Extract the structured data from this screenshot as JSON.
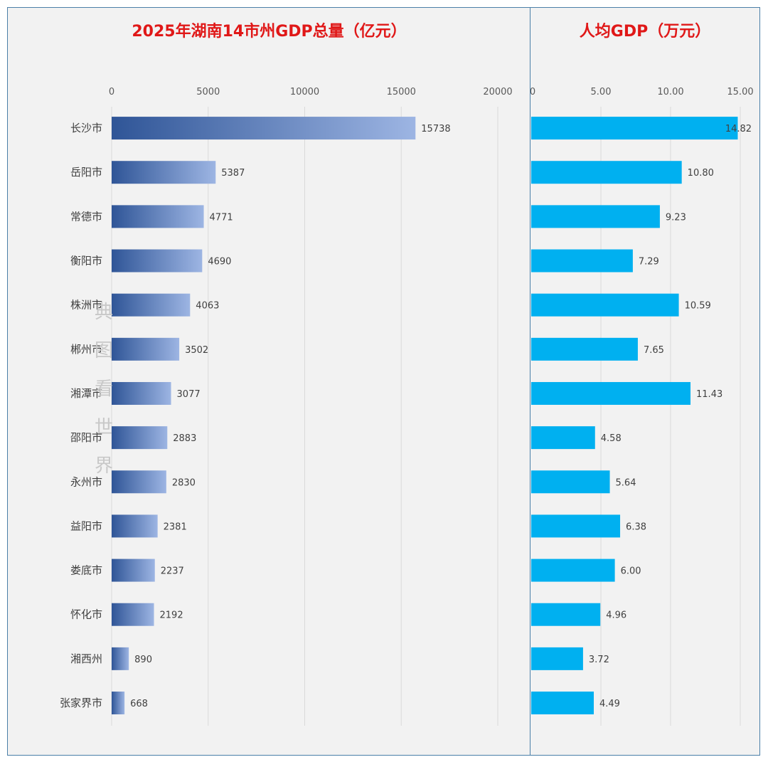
{
  "chart_data": [
    {
      "type": "bar",
      "orientation": "horizontal",
      "title": "2025年湖南14市州GDP总量（亿元）",
      "categories": [
        "长沙市",
        "岳阳市",
        "常德市",
        "衡阳市",
        "株洲市",
        "郴州市",
        "湘潭市",
        "邵阳市",
        "永州市",
        "益阳市",
        "娄底市",
        "怀化市",
        "湘西州",
        "张家界市"
      ],
      "values": [
        15738,
        5387,
        4771,
        4690,
        4063,
        3502,
        3077,
        2883,
        2830,
        2381,
        2237,
        2192,
        890,
        668
      ],
      "value_labels": [
        "15738",
        "5387",
        "4771",
        "4690",
        "4063",
        "3502",
        "3077",
        "2883",
        "2830",
        "2381",
        "2237",
        "2192",
        "890",
        "668"
      ],
      "xlim": [
        0,
        20000
      ],
      "ticks": [
        0,
        5000,
        10000,
        15000,
        20000
      ],
      "tick_labels": [
        "0",
        "5000",
        "10000",
        "15000",
        "20000"
      ],
      "axis_position": "top",
      "grid": true,
      "bar_color": "#2f5597",
      "bar_color_light": "#9db5e3"
    },
    {
      "type": "bar",
      "orientation": "horizontal",
      "title": "人均GDP（万元）",
      "categories": [
        "长沙市",
        "岳阳市",
        "常德市",
        "衡阳市",
        "株洲市",
        "郴州市",
        "湘潭市",
        "邵阳市",
        "永州市",
        "益阳市",
        "娄底市",
        "怀化市",
        "湘西州",
        "张家界市"
      ],
      "values": [
        14.82,
        10.8,
        9.23,
        7.29,
        10.59,
        7.65,
        11.43,
        4.58,
        5.64,
        6.38,
        6.0,
        4.96,
        3.72,
        4.49
      ],
      "value_labels": [
        "14.82",
        "10.80",
        "9.23",
        "7.29",
        "10.59",
        "7.65",
        "11.43",
        "4.58",
        "5.64",
        "6.38",
        "6.00",
        "4.96",
        "3.72",
        "4.49"
      ],
      "xlim": [
        0,
        15
      ],
      "ticks": [
        0,
        5,
        10,
        15
      ],
      "tick_labels": [
        "0",
        "5.00",
        "10.00",
        "15.00"
      ],
      "axis_position": "top",
      "grid": true,
      "bar_color": "#00b0f0"
    }
  ],
  "watermark": "典图看世界"
}
